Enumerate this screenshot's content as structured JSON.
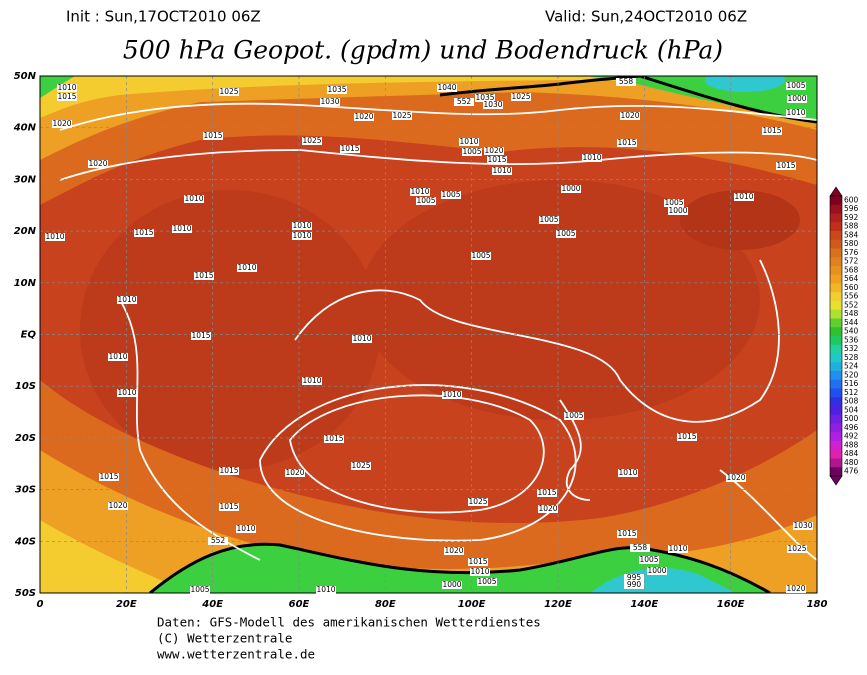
{
  "header": {
    "init": "Init : Sun,17OCT2010 06Z",
    "valid": "Valid: Sun,24OCT2010 06Z",
    "title": "500 hPa Geopot. (gpdm) und Bodendruck (hPa)"
  },
  "map": {
    "lat_labels": [
      "50N",
      "40N",
      "30N",
      "20N",
      "10N",
      "EQ",
      "10S",
      "20S",
      "30S",
      "40S",
      "50S"
    ],
    "lon_labels": [
      "0",
      "20E",
      "40E",
      "60E",
      "80E",
      "100E",
      "120E",
      "140E",
      "160E",
      "180"
    ],
    "contour_labels": [
      "1010",
      "1015",
      "1020",
      "1025",
      "1030",
      "1035",
      "1020",
      "1025",
      "1040",
      "1035",
      "1025",
      "1030",
      "1015",
      "1025",
      "1015",
      "1010",
      "1005",
      "1020",
      "1015",
      "1010",
      "1020",
      "1015",
      "1010",
      "1015",
      "1015",
      "1005",
      "1000",
      "1010",
      "1020",
      "1010",
      "1010",
      "1005",
      "1005",
      "1000",
      "1005",
      "1005",
      "1005",
      "1000",
      "1010",
      "1010",
      "1015",
      "1010",
      "1010",
      "1010",
      "1010",
      "1015",
      "1005",
      "1010",
      "1015",
      "1010",
      "1010",
      "1010",
      "1010",
      "1010",
      "1005",
      "1015",
      "1015",
      "1020",
      "1025",
      "1015",
      "1010",
      "1015",
      "1020",
      "1015",
      "1020",
      "1025",
      "1020",
      "1015",
      "1010",
      "1015",
      "1030",
      "1025",
      "1020",
      "1015",
      "1010",
      "1005",
      "1000",
      "1010",
      "1000",
      "1005",
      "995",
      "990",
      "1005",
      "1010",
      "1020",
      "552",
      "558",
      "552",
      "558"
    ]
  },
  "colorbar": {
    "labels": [
      600,
      596,
      592,
      588,
      584,
      580,
      576,
      572,
      568,
      564,
      560,
      556,
      552,
      548,
      544,
      540,
      536,
      532,
      528,
      524,
      520,
      516,
      512,
      508,
      504,
      500,
      496,
      492,
      488,
      484,
      480,
      476
    ]
  },
  "footer": {
    "line1": "Daten: GFS-Modell des amerikanischen Wetterdienstes",
    "line2": "(C) Wetterzentrale",
    "line3": "www.wetterzentrale.de"
  }
}
